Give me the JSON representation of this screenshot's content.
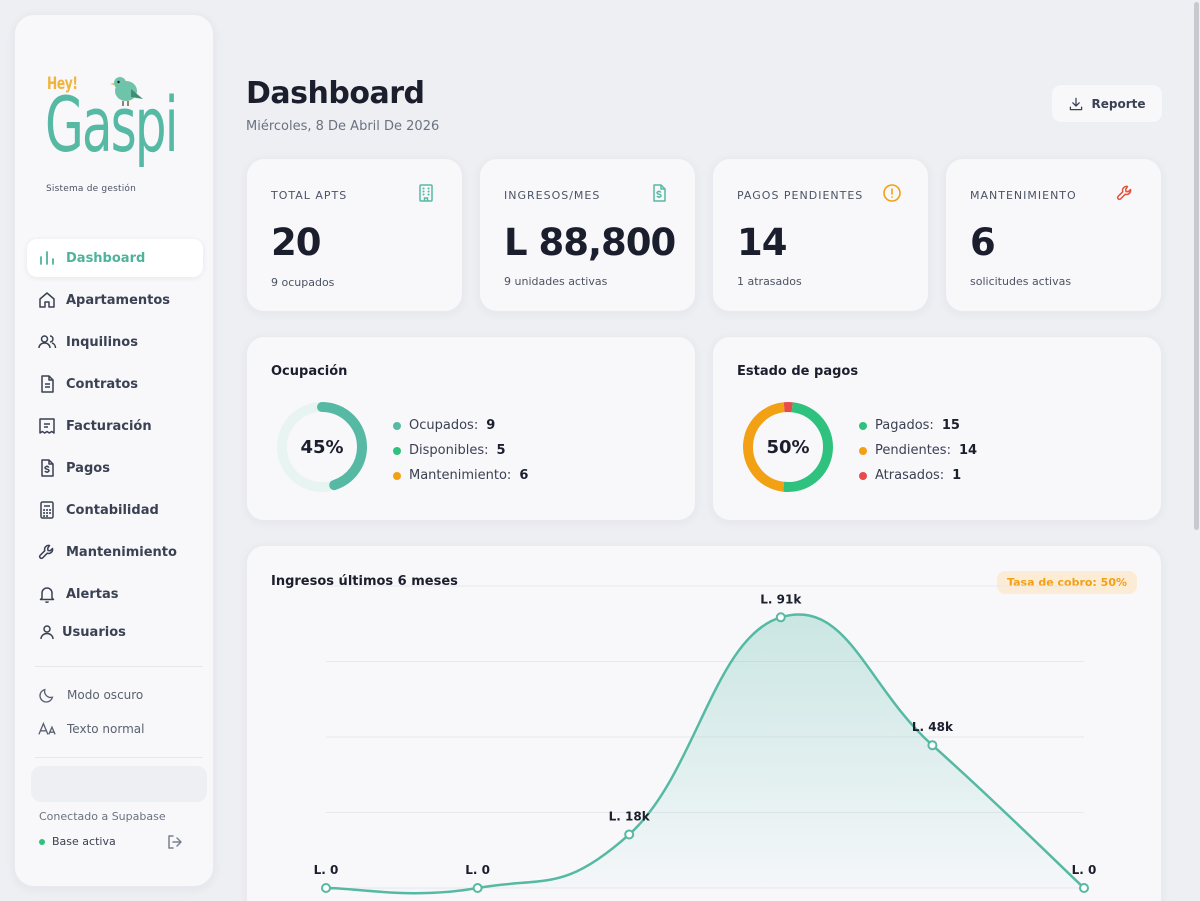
{
  "brand": {
    "hey": "Hey!",
    "name": "Gaspi",
    "tagline": "Sistema de gestión"
  },
  "sidebar": {
    "items": [
      {
        "label": "Dashboard",
        "icon": "bar-chart-icon",
        "active": true
      },
      {
        "label": "Apartamentos",
        "icon": "home-icon"
      },
      {
        "label": "Inquilinos",
        "icon": "users-icon"
      },
      {
        "label": "Contratos",
        "icon": "file-text-icon"
      },
      {
        "label": "Facturación",
        "icon": "receipt-icon"
      },
      {
        "label": "Pagos",
        "icon": "file-dollar-icon"
      },
      {
        "label": "Contabilidad",
        "icon": "calculator-icon"
      },
      {
        "label": "Mantenimiento",
        "icon": "wrench-icon"
      },
      {
        "label": "Alertas",
        "icon": "bell-icon"
      },
      {
        "label": "Usuarios",
        "icon": "user-icon"
      }
    ],
    "dark_mode": "Modo oscuro",
    "text_size": "Texto normal",
    "connection": "Conectado a Supabase",
    "db_status": "Base activa"
  },
  "header": {
    "title": "Dashboard",
    "date": "Miércoles, 8 De Abril De 2026",
    "report_button": "Reporte"
  },
  "stats": [
    {
      "label": "TOTAL APTS",
      "value": "20",
      "sub": "9 ocupados",
      "icon": "building-icon",
      "color": "#55b9a3"
    },
    {
      "label": "INGRESOS/MES",
      "value": "L 88,800",
      "sub": "9 unidades activas",
      "icon": "file-dollar-icon",
      "color": "#55b9a3"
    },
    {
      "label": "PAGOS PENDIENTES",
      "value": "14",
      "sub": "1 atrasados",
      "icon": "alert-circle-icon",
      "color": "#f2a014"
    },
    {
      "label": "MANTENIMIENTO",
      "value": "6",
      "sub": "solicitudes activas",
      "icon": "wrench-icon",
      "color": "#e0553b"
    }
  ],
  "occupancy": {
    "title": "Ocupación",
    "center": "45%",
    "percent": 45,
    "legend": [
      {
        "label": "Ocupados:",
        "value": "9",
        "color": "#55b9a3"
      },
      {
        "label": "Disponibles:",
        "value": "5",
        "color": "#2ec27e"
      },
      {
        "label": "Mantenimiento:",
        "value": "6",
        "color": "#f2a014"
      }
    ]
  },
  "payments": {
    "title": "Estado de pagos",
    "center": "50%",
    "legend": [
      {
        "label": "Pagados:",
        "value": "15",
        "color": "#2ec27e"
      },
      {
        "label": "Pendientes:",
        "value": "14",
        "color": "#f2a014"
      },
      {
        "label": "Atrasados:",
        "value": "1",
        "color": "#e84b4b"
      }
    ]
  },
  "revenue": {
    "title": "Ingresos últimos 6 meses",
    "badge": "Tasa de cobro: 50%"
  },
  "chart_data": {
    "type": "area",
    "title": "Ingresos últimos 6 meses",
    "x": [
      "1",
      "2",
      "3",
      "4",
      "5",
      "6"
    ],
    "values": [
      0,
      0,
      18000,
      91000,
      48000,
      0
    ],
    "data_labels": [
      "L. 0",
      "L. 0",
      "L. 18k",
      "L. 91k",
      "L. 48k",
      "L. 0"
    ],
    "ylim": [
      0,
      100000
    ],
    "grid": true,
    "color": "#55b9a3"
  }
}
